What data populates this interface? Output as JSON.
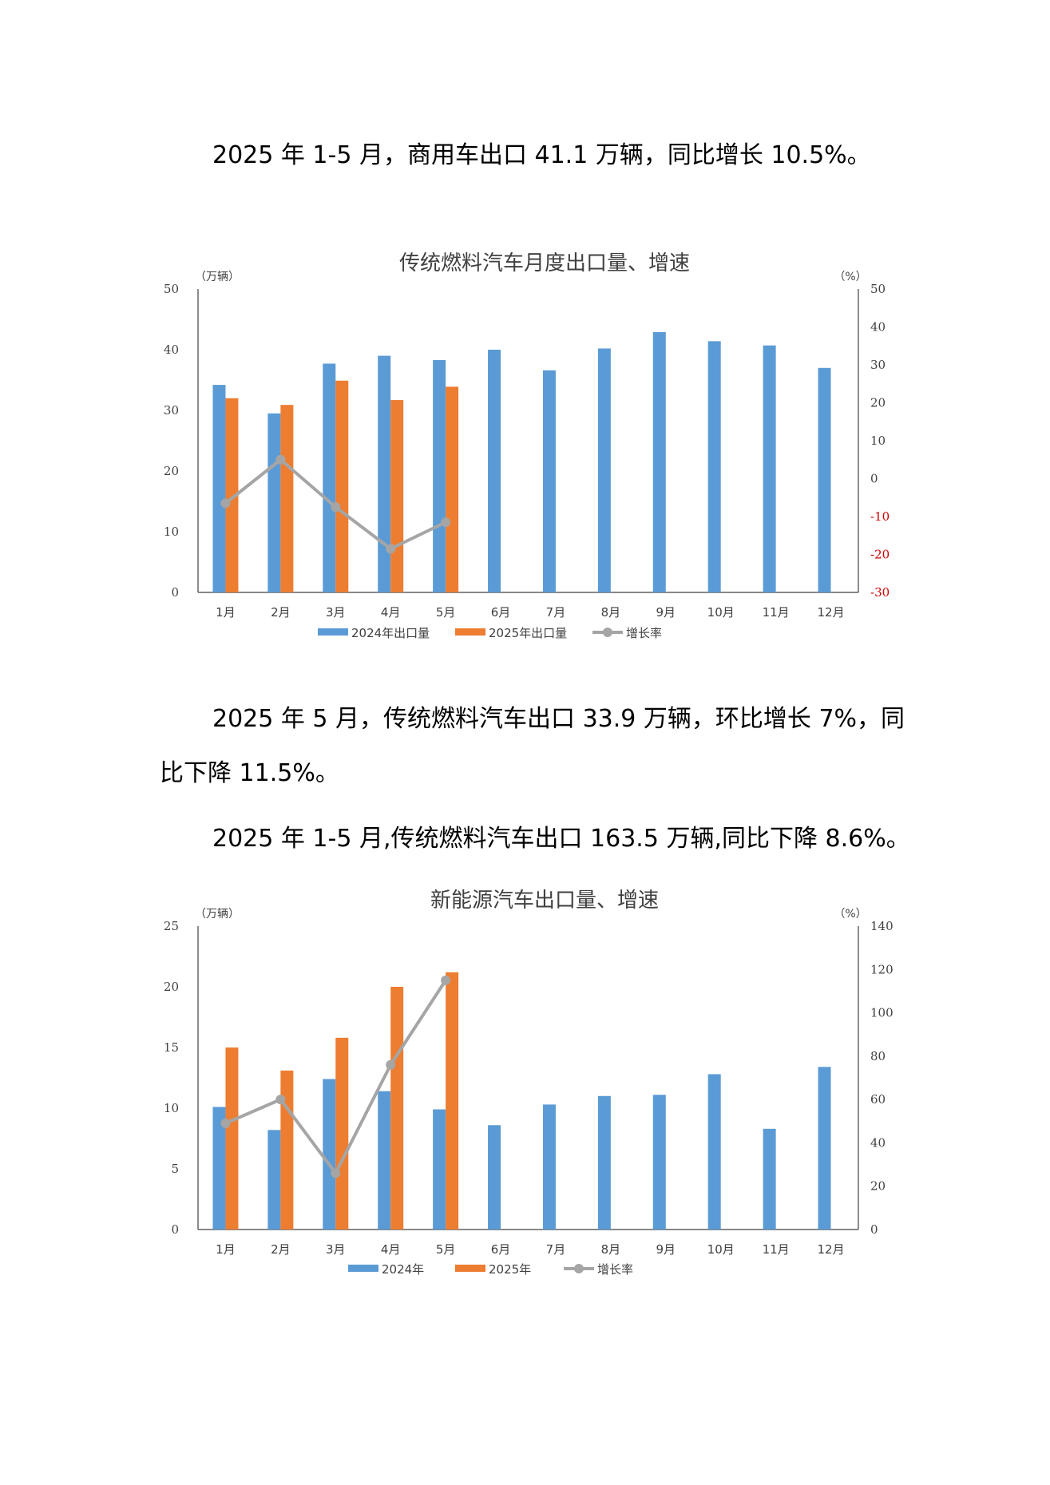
{
  "paragraphs": [
    "2025 年 1-5 月，商用车出口 41.1 万辆，同比增长 10.5%。",
    "2025 年 5 月，传统燃料汽车出口 33.9 万辆，环比增长 7%，同",
    "比下降 11.5%。",
    "2025 年 1-5 月,传统燃料汽车出口 163.5 万辆,同比下降 8.6%。"
  ],
  "colors": {
    "series_2024": "#5b9bd5",
    "series_2025": "#ed7d31",
    "growth_line": "#a5a5a5",
    "negative_tick": "#d00000"
  },
  "chart_data": [
    {
      "type": "bar",
      "title": "传统燃料汽车月度出口量、增速",
      "y_unit": "（万辆）",
      "y2_unit": "（%）",
      "categories": [
        "1月",
        "2月",
        "3月",
        "4月",
        "5月",
        "6月",
        "7月",
        "8月",
        "9月",
        "10月",
        "11月",
        "12月"
      ],
      "ylim": [
        0,
        50
      ],
      "yticks": [
        0,
        10,
        20,
        30,
        40,
        50
      ],
      "y2lim": [
        -30,
        50
      ],
      "y2ticks": [
        -30,
        -20,
        -10,
        0,
        10,
        20,
        30,
        40,
        50
      ],
      "legend_position": "bottom",
      "series": [
        {
          "name": "2024年出口量",
          "type": "bar",
          "axis": "left",
          "values": [
            34.2,
            29.5,
            37.7,
            39.0,
            38.3,
            40.0,
            36.6,
            40.2,
            42.9,
            41.4,
            40.7,
            37.0
          ]
        },
        {
          "name": "2025年出口量",
          "type": "bar",
          "axis": "left",
          "values": [
            32.0,
            30.9,
            34.9,
            31.7,
            33.9,
            null,
            null,
            null,
            null,
            null,
            null,
            null
          ]
        },
        {
          "name": "增长率",
          "type": "line",
          "axis": "right",
          "values": [
            -6.5,
            5.0,
            -7.5,
            -18.5,
            -11.5,
            null,
            null,
            null,
            null,
            null,
            null,
            null
          ]
        }
      ]
    },
    {
      "type": "bar",
      "title": "新能源汽车出口量、增速",
      "y_unit": "（万辆）",
      "y2_unit": "（%）",
      "categories": [
        "1月",
        "2月",
        "3月",
        "4月",
        "5月",
        "6月",
        "7月",
        "8月",
        "9月",
        "10月",
        "11月",
        "12月"
      ],
      "ylim": [
        0,
        25
      ],
      "yticks": [
        0,
        5,
        10,
        15,
        20,
        25
      ],
      "y2lim": [
        0,
        140
      ],
      "y2ticks": [
        0,
        20,
        40,
        60,
        80,
        100,
        120,
        140
      ],
      "legend_position": "bottom",
      "series": [
        {
          "name": "2024年",
          "type": "bar",
          "axis": "left",
          "values": [
            10.1,
            8.2,
            12.4,
            11.4,
            9.9,
            8.6,
            10.3,
            11.0,
            11.1,
            12.8,
            8.3,
            13.4
          ]
        },
        {
          "name": "2025年",
          "type": "bar",
          "axis": "left",
          "values": [
            15.0,
            13.1,
            15.8,
            20.0,
            21.2,
            null,
            null,
            null,
            null,
            null,
            null,
            null
          ]
        },
        {
          "name": "增长率",
          "type": "line",
          "axis": "right",
          "values": [
            49.0,
            60.0,
            26.0,
            76.0,
            115.0,
            null,
            null,
            null,
            null,
            null,
            null,
            null
          ]
        }
      ]
    }
  ]
}
